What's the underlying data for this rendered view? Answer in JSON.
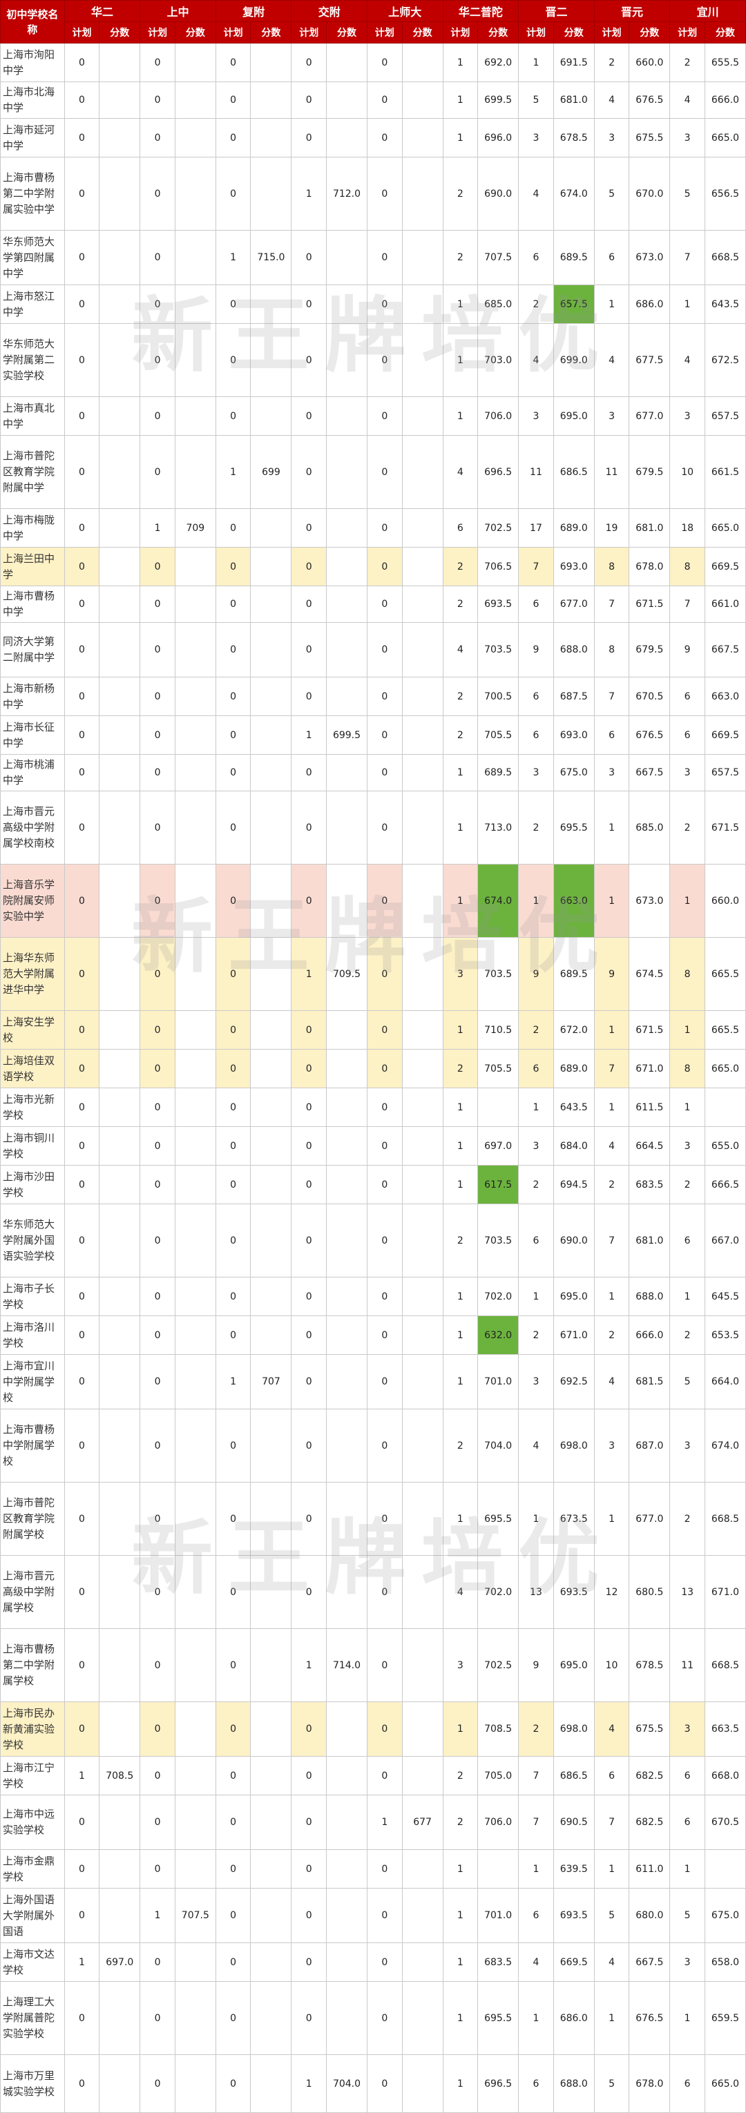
{
  "table": {
    "corner_label": "初中学校名称",
    "groups": [
      "华二",
      "上中",
      "复附",
      "交附",
      "上师大",
      "华二普陀",
      "晋二",
      "晋元",
      "宜川"
    ],
    "sub_headers": [
      "计划",
      "分数"
    ],
    "rows": [
      {
        "school": "上海市洵阳中学",
        "h": 56,
        "cells": [
          "0",
          "",
          "0",
          "",
          "0",
          "",
          "0",
          "",
          "0",
          "",
          "1",
          "692.0",
          "1",
          "691.5",
          "2",
          "660.0",
          "2",
          "655.5"
        ]
      },
      {
        "school": "上海市北海中学",
        "h": 45,
        "cells": [
          "0",
          "",
          "0",
          "",
          "0",
          "",
          "0",
          "",
          "0",
          "",
          "1",
          "699.5",
          "5",
          "681.0",
          "4",
          "676.5",
          "4",
          "666.0"
        ]
      },
      {
        "school": "上海市延河中学",
        "h": 56,
        "cells": [
          "0",
          "",
          "0",
          "",
          "0",
          "",
          "0",
          "",
          "0",
          "",
          "1",
          "696.0",
          "3",
          "678.5",
          "3",
          "675.5",
          "3",
          "665.0"
        ]
      },
      {
        "school": "上海市曹杨第二中学附属实验中学",
        "h": 106,
        "cells": [
          "0",
          "",
          "0",
          "",
          "0",
          "",
          "1",
          "712.0",
          "0",
          "",
          "2",
          "690.0",
          "4",
          "674.0",
          "5",
          "670.0",
          "5",
          "656.5"
        ]
      },
      {
        "school": "华东师范大学第四附属中学",
        "h": 79,
        "cells": [
          "0",
          "",
          "0",
          "",
          "1",
          "715.0",
          "0",
          "",
          "0",
          "",
          "2",
          "707.5",
          "6",
          "689.5",
          "6",
          "673.0",
          "7",
          "668.5"
        ]
      },
      {
        "school": "上海市怒江中学",
        "h": 56,
        "cells": [
          "0",
          "",
          "0",
          "",
          "0",
          "",
          "0",
          "",
          "0",
          "",
          "1",
          "685.0",
          "2",
          "657.5",
          "1",
          "686.0",
          "1",
          "643.5"
        ],
        "green": [
          13,
          19
        ]
      },
      {
        "school": "华东师范大学附属第二实验学校",
        "h": 106,
        "cells": [
          "0",
          "",
          "0",
          "",
          "0",
          "",
          "0",
          "",
          "0",
          "",
          "1",
          "703.0",
          "4",
          "699.0",
          "4",
          "677.5",
          "4",
          "672.5"
        ]
      },
      {
        "school": "上海市真北中学",
        "h": 56,
        "cells": [
          "0",
          "",
          "0",
          "",
          "0",
          "",
          "0",
          "",
          "0",
          "",
          "1",
          "706.0",
          "3",
          "695.0",
          "3",
          "677.0",
          "3",
          "657.5"
        ]
      },
      {
        "school": "上海市普陀区教育学院附属中学",
        "h": 106,
        "cells": [
          "0",
          "",
          "0",
          "",
          "1",
          "699",
          "0",
          "",
          "0",
          "",
          "4",
          "696.5",
          "11",
          "686.5",
          "11",
          "679.5",
          "10",
          "661.5"
        ]
      },
      {
        "school": "上海市梅陇中学",
        "h": 56,
        "cells": [
          "0",
          "",
          "1",
          "709",
          "0",
          "",
          "0",
          "",
          "0",
          "",
          "6",
          "702.5",
          "17",
          "689.0",
          "19",
          "681.0",
          "18",
          "665.0"
        ]
      },
      {
        "school": "上海兰田中学",
        "h": 56,
        "cells": [
          "0",
          "",
          "0",
          "",
          "0",
          "",
          "0",
          "",
          "0",
          "",
          "2",
          "706.5",
          "7",
          "693.0",
          "8",
          "678.0",
          "8",
          "669.5"
        ],
        "style": "yellow"
      },
      {
        "school": "上海市曹杨中学",
        "h": 45,
        "cells": [
          "0",
          "",
          "0",
          "",
          "0",
          "",
          "0",
          "",
          "0",
          "",
          "2",
          "693.5",
          "6",
          "677.0",
          "7",
          "671.5",
          "7",
          "661.0"
        ]
      },
      {
        "school": "同济大学第二附属中学",
        "h": 79,
        "cells": [
          "0",
          "",
          "0",
          "",
          "0",
          "",
          "0",
          "",
          "0",
          "",
          "4",
          "703.5",
          "9",
          "688.0",
          "8",
          "679.5",
          "9",
          "667.5"
        ]
      },
      {
        "school": "上海市新杨中学",
        "h": 56,
        "cells": [
          "0",
          "",
          "0",
          "",
          "0",
          "",
          "0",
          "",
          "0",
          "",
          "2",
          "700.5",
          "6",
          "687.5",
          "7",
          "670.5",
          "6",
          "663.0"
        ]
      },
      {
        "school": "上海市长征中学",
        "h": 56,
        "cells": [
          "0",
          "",
          "0",
          "",
          "0",
          "",
          "1",
          "699.5",
          "0",
          "",
          "2",
          "705.5",
          "6",
          "693.0",
          "6",
          "676.5",
          "6",
          "669.5"
        ]
      },
      {
        "school": "上海市桃浦中学",
        "h": 45,
        "cells": [
          "0",
          "",
          "0",
          "",
          "0",
          "",
          "0",
          "",
          "0",
          "",
          "1",
          "689.5",
          "3",
          "675.0",
          "3",
          "667.5",
          "3",
          "657.5"
        ]
      },
      {
        "school": "上海市晋元高级中学附属学校南校",
        "h": 106,
        "cells": [
          "0",
          "",
          "0",
          "",
          "0",
          "",
          "0",
          "",
          "0",
          "",
          "1",
          "713.0",
          "2",
          "695.5",
          "1",
          "685.0",
          "2",
          "671.5"
        ]
      },
      {
        "school": "上海音乐学院附属安师实验中学",
        "h": 106,
        "cells": [
          "0",
          "",
          "0",
          "",
          "0",
          "",
          "0",
          "",
          "0",
          "",
          "1",
          "674.0",
          "1",
          "663.0",
          "1",
          "673.0",
          "1",
          "660.0"
        ],
        "style": "pink",
        "green": [
          11,
          13
        ]
      },
      {
        "school": "上海华东师范大学附属进华中学",
        "h": 106,
        "cells": [
          "0",
          "",
          "0",
          "",
          "0",
          "",
          "1",
          "709.5",
          "0",
          "",
          "3",
          "703.5",
          "9",
          "689.5",
          "9",
          "674.5",
          "8",
          "665.5"
        ],
        "style": "yellow"
      },
      {
        "school": "上海安生学校",
        "h": 56,
        "cells": [
          "0",
          "",
          "0",
          "",
          "0",
          "",
          "0",
          "",
          "0",
          "",
          "1",
          "710.5",
          "2",
          "672.0",
          "1",
          "671.5",
          "1",
          "665.5"
        ],
        "style": "yellow"
      },
      {
        "school": "上海培佳双语学校",
        "h": 56,
        "cells": [
          "0",
          "",
          "0",
          "",
          "0",
          "",
          "0",
          "",
          "0",
          "",
          "2",
          "705.5",
          "6",
          "689.0",
          "7",
          "671.0",
          "8",
          "665.0"
        ],
        "style": "yellow"
      },
      {
        "school": "上海市光新学校",
        "h": 56,
        "cells": [
          "0",
          "",
          "0",
          "",
          "0",
          "",
          "0",
          "",
          "0",
          "",
          "1",
          "",
          "1",
          "643.5",
          "1",
          "611.5",
          "1",
          ""
        ]
      },
      {
        "school": "上海市铜川学校",
        "h": 56,
        "cells": [
          "0",
          "",
          "0",
          "",
          "0",
          "",
          "0",
          "",
          "0",
          "",
          "1",
          "697.0",
          "3",
          "684.0",
          "4",
          "664.5",
          "3",
          "655.0"
        ]
      },
      {
        "school": "上海市沙田学校",
        "h": 56,
        "cells": [
          "0",
          "",
          "0",
          "",
          "0",
          "",
          "0",
          "",
          "0",
          "",
          "1",
          "617.5",
          "2",
          "694.5",
          "2",
          "683.5",
          "2",
          "666.5"
        ],
        "green": [
          11
        ]
      },
      {
        "school": "华东师范大学附属外国语实验学校",
        "h": 106,
        "cells": [
          "0",
          "",
          "0",
          "",
          "0",
          "",
          "0",
          "",
          "0",
          "",
          "2",
          "703.5",
          "6",
          "690.0",
          "7",
          "681.0",
          "6",
          "667.0"
        ]
      },
      {
        "school": "上海市子长学校",
        "h": 56,
        "cells": [
          "0",
          "",
          "0",
          "",
          "0",
          "",
          "0",
          "",
          "0",
          "",
          "1",
          "702.0",
          "1",
          "695.0",
          "1",
          "688.0",
          "1",
          "645.5"
        ],
        "green": [
          19
        ]
      },
      {
        "school": "上海市洛川学校",
        "h": 56,
        "cells": [
          "0",
          "",
          "0",
          "",
          "0",
          "",
          "0",
          "",
          "0",
          "",
          "1",
          "632.0",
          "2",
          "671.0",
          "2",
          "666.0",
          "2",
          "653.5"
        ],
        "green": [
          11
        ]
      },
      {
        "school": "上海市宜川中学附属学校",
        "h": 79,
        "cells": [
          "0",
          "",
          "0",
          "",
          "1",
          "707",
          "0",
          "",
          "0",
          "",
          "1",
          "701.0",
          "3",
          "692.5",
          "4",
          "681.5",
          "5",
          "664.0"
        ]
      },
      {
        "school": "上海市曹杨中学附属学校",
        "h": 106,
        "cells": [
          "0",
          "",
          "0",
          "",
          "0",
          "",
          "0",
          "",
          "0",
          "",
          "2",
          "704.0",
          "4",
          "698.0",
          "3",
          "687.0",
          "3",
          "674.0"
        ]
      },
      {
        "school": "上海市普陀区教育学院附属学校",
        "h": 106,
        "cells": [
          "0",
          "",
          "0",
          "",
          "0",
          "",
          "0",
          "",
          "0",
          "",
          "1",
          "695.5",
          "1",
          "673.5",
          "1",
          "677.0",
          "2",
          "668.5"
        ]
      },
      {
        "school": "上海市晋元高级中学附属学校",
        "h": 106,
        "cells": [
          "0",
          "",
          "0",
          "",
          "0",
          "",
          "0",
          "",
          "0",
          "",
          "4",
          "702.0",
          "13",
          "693.5",
          "12",
          "680.5",
          "13",
          "671.0"
        ]
      },
      {
        "school": "上海市曹杨第二中学附属学校",
        "h": 106,
        "cells": [
          "0",
          "",
          "0",
          "",
          "0",
          "",
          "1",
          "714.0",
          "0",
          "",
          "3",
          "702.5",
          "9",
          "695.0",
          "10",
          "678.5",
          "11",
          "668.5"
        ]
      },
      {
        "school": "上海市民办新黄浦实验学校",
        "h": 79,
        "cells": [
          "0",
          "",
          "0",
          "",
          "0",
          "",
          "0",
          "",
          "0",
          "",
          "1",
          "708.5",
          "2",
          "698.0",
          "4",
          "675.5",
          "3",
          "663.5"
        ],
        "style": "yellow"
      },
      {
        "school": "上海市江宁学校",
        "h": 56,
        "cells": [
          "1",
          "708.5",
          "0",
          "",
          "0",
          "",
          "0",
          "",
          "0",
          "",
          "2",
          "705.0",
          "7",
          "686.5",
          "6",
          "682.5",
          "6",
          "668.0"
        ]
      },
      {
        "school": "上海市中远实验学校",
        "h": 79,
        "cells": [
          "0",
          "",
          "0",
          "",
          "0",
          "",
          "0",
          "",
          "1",
          "677",
          "2",
          "706.0",
          "7",
          "690.5",
          "7",
          "682.5",
          "6",
          "670.5"
        ]
      },
      {
        "school": "上海市金鼎学校",
        "h": 56,
        "cells": [
          "0",
          "",
          "0",
          "",
          "0",
          "",
          "0",
          "",
          "0",
          "",
          "1",
          "",
          "1",
          "639.5",
          "1",
          "611.0",
          "1",
          ""
        ]
      },
      {
        "school": "上海外国语大学附属外国语",
        "h": 79,
        "cells": [
          "0",
          "",
          "1",
          "707.5",
          "0",
          "",
          "0",
          "",
          "0",
          "",
          "1",
          "701.0",
          "6",
          "693.5",
          "5",
          "680.0",
          "5",
          "675.0"
        ]
      },
      {
        "school": "上海市文达学校",
        "h": 56,
        "cells": [
          "1",
          "697.0",
          "0",
          "",
          "0",
          "",
          "0",
          "",
          "0",
          "",
          "1",
          "683.5",
          "4",
          "669.5",
          "4",
          "667.5",
          "3",
          "658.0"
        ]
      },
      {
        "school": "上海理工大学附属普陀实验学校",
        "h": 106,
        "cells": [
          "0",
          "",
          "0",
          "",
          "0",
          "",
          "0",
          "",
          "0",
          "",
          "1",
          "695.5",
          "1",
          "686.0",
          "1",
          "676.5",
          "1",
          "659.5"
        ]
      },
      {
        "school": "上海市万里城实验学校",
        "h": 84,
        "cells": [
          "0",
          "",
          "0",
          "",
          "0",
          "",
          "1",
          "704.0",
          "0",
          "",
          "1",
          "696.5",
          "6",
          "688.0",
          "5",
          "678.0",
          "6",
          "665.0"
        ]
      }
    ]
  },
  "watermark": "新王牌培优"
}
